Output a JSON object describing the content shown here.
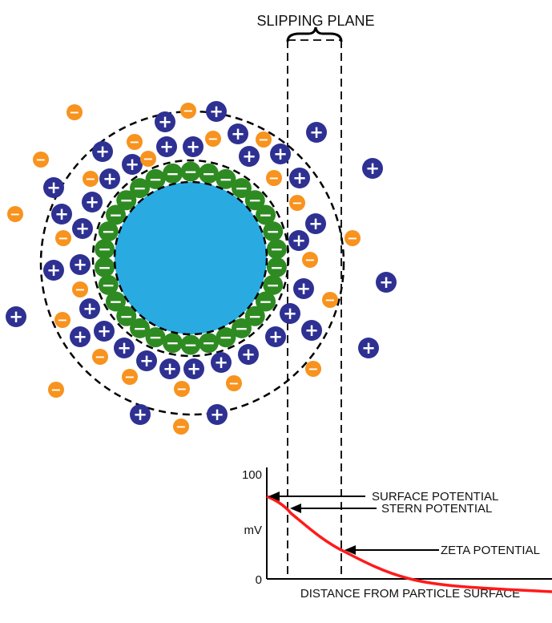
{
  "title": "SLIPPING PLANE",
  "labels": {
    "surface_potential": "SURFACE POTENTIAL",
    "stern_potential": "STERN POTENTIAL",
    "zeta_potential": "ZETA POTENTIAL",
    "x_axis": "DISTANCE FROM PARTICLE SURFACE",
    "y_unit": "mV",
    "y_max": "100",
    "y_min": "0"
  },
  "ion_symbols": {
    "positive": "+",
    "negative": "−"
  },
  "colors": {
    "particle": "#29abe2",
    "negative_layer": "#2e8b22",
    "positive_ion": "#2e3192",
    "negative_ion": "#f7931e",
    "curve": "#ff1a1a"
  }
}
